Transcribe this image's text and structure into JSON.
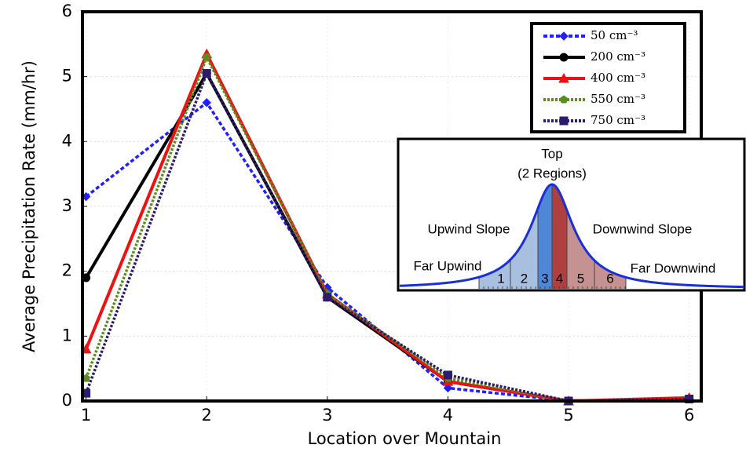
{
  "chart_data": {
    "type": "line",
    "x_label": "Location over Mountain",
    "y_label": "Average Precipitation Rate (mm/hr)",
    "x": [
      1,
      2,
      3,
      4,
      5,
      6
    ],
    "xlim": [
      0.97,
      6.1
    ],
    "xticks": [
      1,
      2,
      3,
      4,
      5,
      6
    ],
    "ylim": [
      0,
      6
    ],
    "yticks": [
      0,
      1,
      2,
      3,
      4,
      5,
      6
    ],
    "grid": true,
    "legend": "upper right",
    "series": [
      {
        "name": "50 cm⁻³",
        "color": "#1f1fff",
        "dash": "dashed",
        "marker": "diamond",
        "values": [
          3.15,
          4.6,
          1.75,
          0.2,
          0.0,
          0.03
        ]
      },
      {
        "name": "200 cm⁻³",
        "color": "#000000",
        "dash": "solid",
        "marker": "circle",
        "values": [
          1.9,
          5.05,
          1.6,
          0.3,
          0.0,
          0.03
        ]
      },
      {
        "name": "400 cm⁻³",
        "color": "#ee1111",
        "dash": "solid",
        "marker": "triangle",
        "values": [
          0.8,
          5.35,
          1.65,
          0.3,
          0.0,
          0.05
        ]
      },
      {
        "name": "550 cm⁻³",
        "color": "#5b8c1e",
        "dash": "dotted",
        "marker": "pentagon",
        "values": [
          0.35,
          5.3,
          1.65,
          0.35,
          0.0,
          0.03
        ]
      },
      {
        "name": "750 cm⁻³",
        "color": "#2d1b6b",
        "dash": "dotted",
        "marker": "square",
        "values": [
          0.12,
          5.05,
          1.6,
          0.4,
          0.0,
          0.03
        ]
      }
    ]
  },
  "inset": {
    "top": "Top",
    "top_note": "(2 Regions)",
    "upwind_slope": "Upwind Slope",
    "downwind_slope": "Downwind Slope",
    "far_upwind": "Far Upwind",
    "far_downwind": "Far Downwind",
    "regions": [
      "1",
      "2",
      "3",
      "4",
      "5",
      "6"
    ]
  }
}
